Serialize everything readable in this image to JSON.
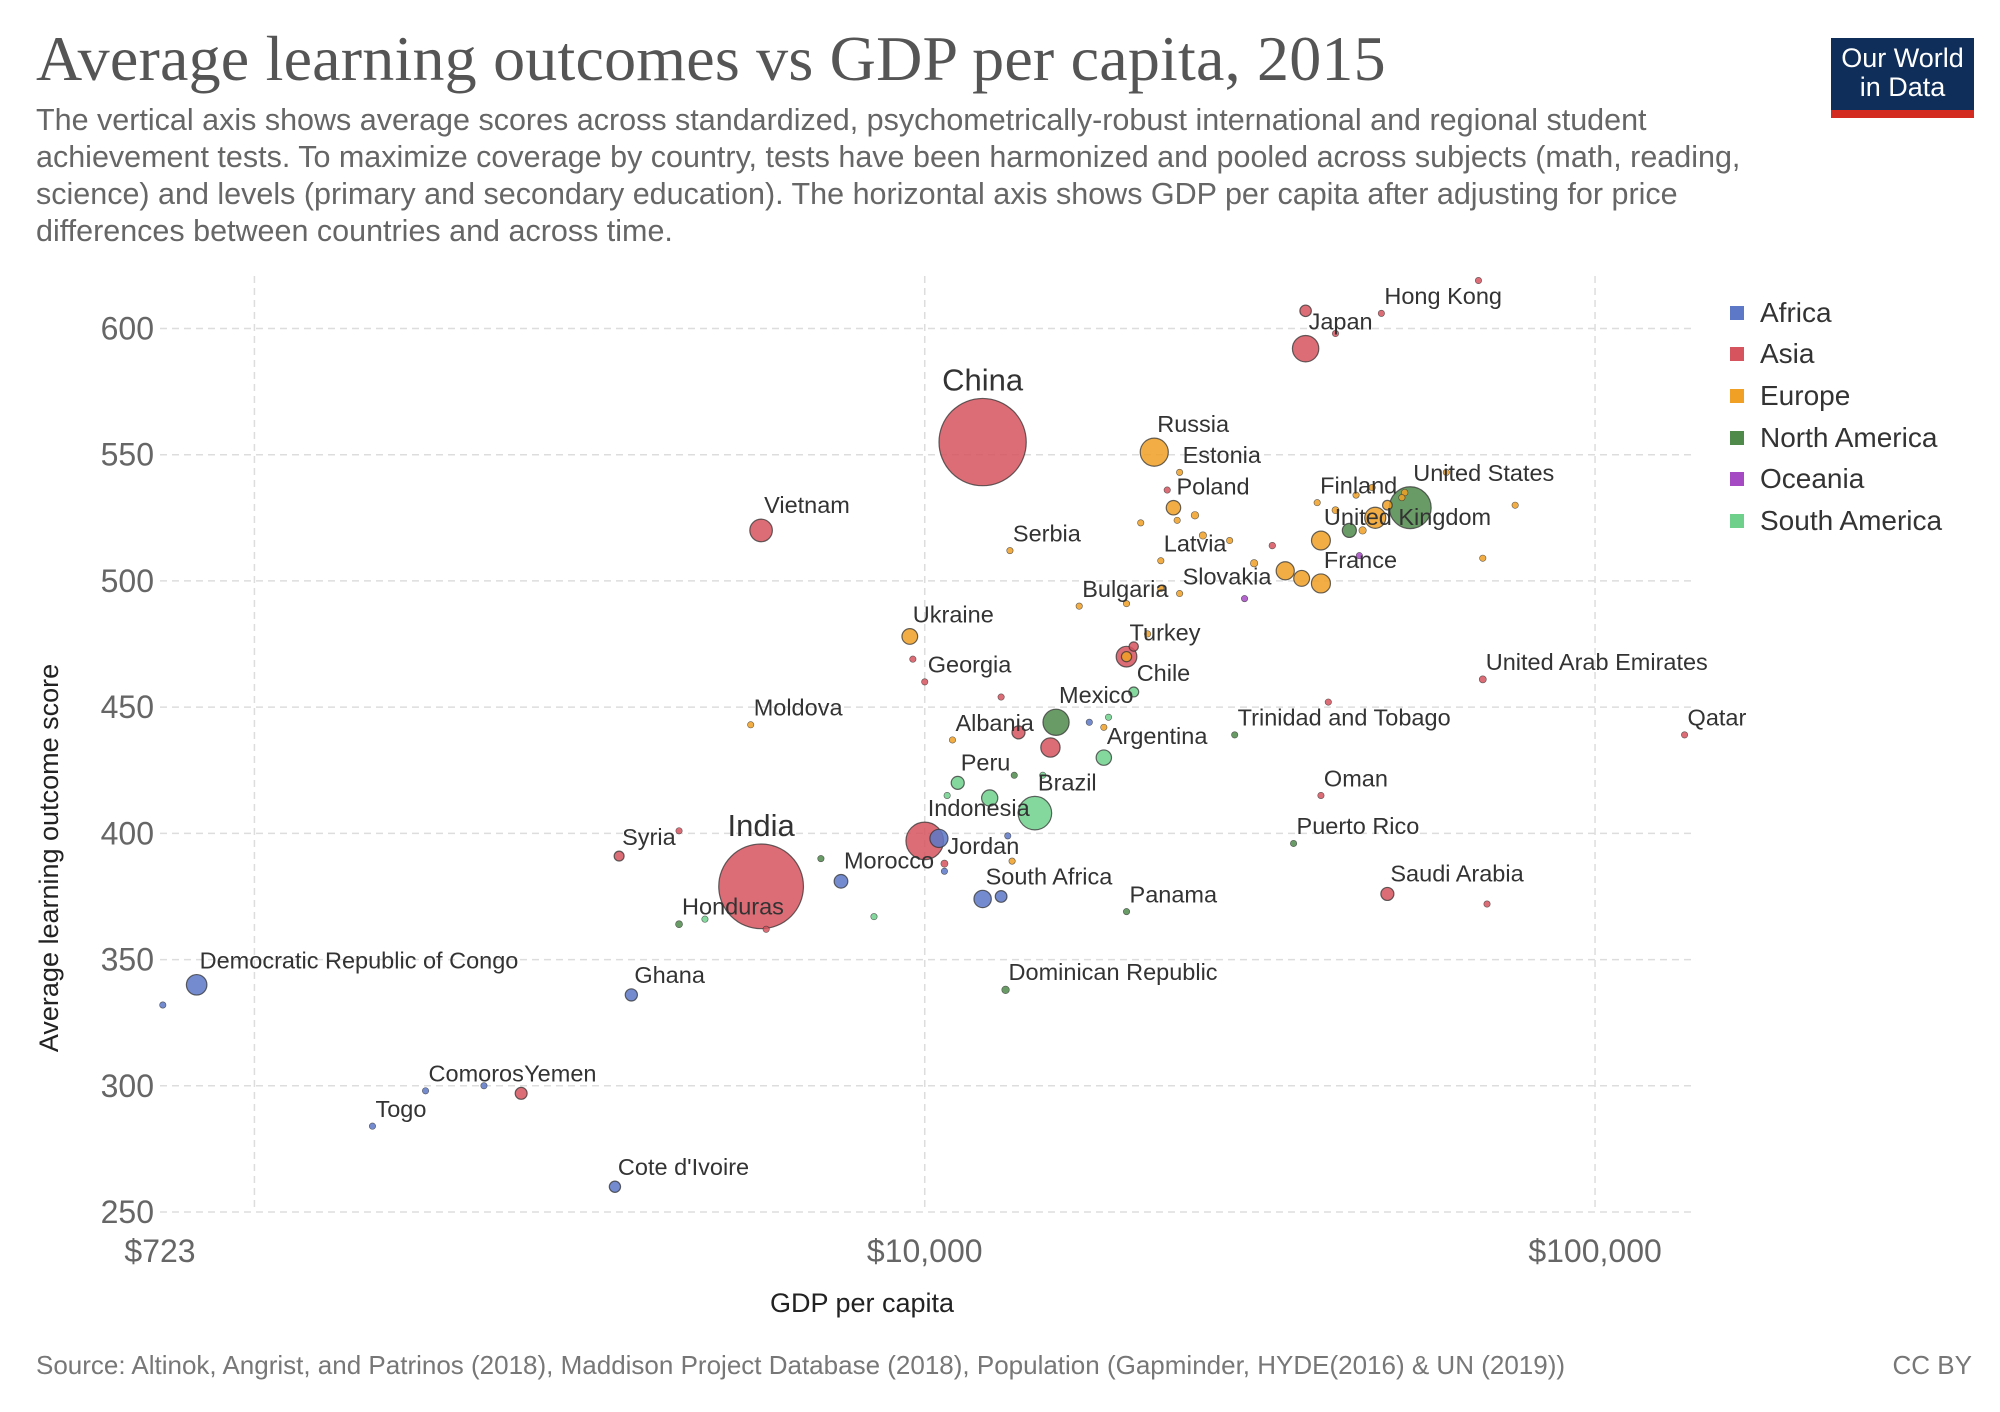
{
  "header": {
    "title": "Average learning outcomes vs GDP per capita, 2015",
    "subtitle": "The vertical axis shows average scores across standardized, psychometrically-robust international and regional student achievement tests. To maximize coverage by country, tests have been harmonized and pooled across subjects (math, reading, science) and levels (primary and secondary education). The horizontal axis shows GDP per capita after adjusting for price differences between countries and across time."
  },
  "logo": {
    "line1": "Our World",
    "line2": "in Data"
  },
  "footer": {
    "source": "Source: Altinok, Angrist, and Patrinos (2018), Maddison Project Database (2018), Population (Gapminder, HYDE(2016) & UN (2019))",
    "license": "CC BY"
  },
  "colors": {
    "Africa": "#5c78c7",
    "Asia": "#d6545e",
    "Europe": "#f0a024",
    "North America": "#4f8a4b",
    "Oceania": "#a64ac4",
    "South America": "#6fd08c"
  },
  "chart_data": {
    "type": "scatter",
    "xlabel": "GDP per capita",
    "ylabel": "Average learning outcome score",
    "x_scale": "log",
    "xlim": [
      723,
      140000
    ],
    "ylim": [
      250,
      620
    ],
    "x_ticks": [
      723,
      10000,
      100000
    ],
    "x_tick_labels": [
      "$723",
      "$10,000",
      "$100,000"
    ],
    "y_ticks": [
      250,
      300,
      350,
      400,
      450,
      500,
      550,
      600
    ],
    "grid": true,
    "legend_position": "right",
    "legend": [
      "Africa",
      "Asia",
      "Europe",
      "North America",
      "Oceania",
      "South America"
    ],
    "points": [
      {
        "label": "China",
        "region": "Asia",
        "gdp": 12200,
        "score": 555,
        "pop": 1390000000
      },
      {
        "label": "India",
        "region": "Asia",
        "gdp": 5700,
        "score": 379,
        "pop": 1310000000
      },
      {
        "label": "Indonesia",
        "region": "Asia",
        "gdp": 10000,
        "score": 397,
        "pop": 258000000
      },
      {
        "label": "Japan",
        "region": "Asia",
        "gdp": 37000,
        "score": 592,
        "pop": 127000000
      },
      {
        "label": "Hong Kong",
        "region": "Asia",
        "gdp": 48000,
        "score": 606,
        "pop": 7300000
      },
      {
        "label": "Vietnam",
        "region": "Asia",
        "gdp": 5700,
        "score": 520,
        "pop": 93000000
      },
      {
        "label": "Georgia",
        "region": "Asia",
        "gdp": 10000,
        "score": 460,
        "pop": 3700000
      },
      {
        "label": "Turkey",
        "region": "Asia",
        "gdp": 20000,
        "score": 470,
        "pop": 78000000
      },
      {
        "label": "Syria",
        "region": "Asia",
        "gdp": 3500,
        "score": 391,
        "pop": 18000000
      },
      {
        "label": "Jordan",
        "region": "Asia",
        "gdp": 10700,
        "score": 388,
        "pop": 9300000
      },
      {
        "label": "Yemen",
        "region": "Asia",
        "gdp": 2500,
        "score": 297,
        "pop": 26000000
      },
      {
        "label": "United Arab Emirates",
        "region": "Asia",
        "gdp": 68000,
        "score": 461,
        "pop": 9200000
      },
      {
        "label": "Qatar",
        "region": "Asia",
        "gdp": 136000,
        "score": 439,
        "pop": 2500000
      },
      {
        "label": "Oman",
        "region": "Asia",
        "gdp": 39000,
        "score": 415,
        "pop": 4300000
      },
      {
        "label": "Saudi Arabia",
        "region": "Asia",
        "gdp": 49000,
        "score": 376,
        "pop": 31000000
      },
      {
        "label": "",
        "region": "Asia",
        "gdp": 37000,
        "score": 607,
        "pop": 24000000
      },
      {
        "label": "",
        "region": "Asia",
        "gdp": 41000,
        "score": 598,
        "pop": 5500000
      },
      {
        "label": "",
        "region": "Asia",
        "gdp": 67000,
        "score": 619,
        "pop": 1200000
      },
      {
        "label": "",
        "region": "Asia",
        "gdp": 23000,
        "score": 536,
        "pop": 5000000
      },
      {
        "label": "",
        "region": "Asia",
        "gdp": 33000,
        "score": 514,
        "pop": 8000000
      },
      {
        "label": "",
        "region": "Asia",
        "gdp": 9600,
        "score": 469,
        "pop": 3000000
      },
      {
        "label": "",
        "region": "Asia",
        "gdp": 13000,
        "score": 454,
        "pop": 3500000
      },
      {
        "label": "",
        "region": "Asia",
        "gdp": 20500,
        "score": 474,
        "pop": 16000000
      },
      {
        "label": "",
        "region": "Asia",
        "gdp": 13800,
        "score": 440,
        "pop": 31000000
      },
      {
        "label": "",
        "region": "Asia",
        "gdp": 15400,
        "score": 434,
        "pop": 68000000
      },
      {
        "label": "",
        "region": "Asia",
        "gdp": 4300,
        "score": 401,
        "pop": 3000000
      },
      {
        "label": "",
        "region": "Asia",
        "gdp": 5800,
        "score": 362,
        "pop": 5000000
      },
      {
        "label": "",
        "region": "Asia",
        "gdp": 40000,
        "score": 452,
        "pop": 3000000
      },
      {
        "label": "",
        "region": "Asia",
        "gdp": 69000,
        "score": 372,
        "pop": 3000000
      },
      {
        "label": "Russia",
        "region": "Europe",
        "gdp": 22000,
        "score": 551,
        "pop": 144000000
      },
      {
        "label": "Estonia",
        "region": "Europe",
        "gdp": 24000,
        "score": 543,
        "pop": 1300000
      },
      {
        "label": "Poland",
        "region": "Europe",
        "gdp": 23500,
        "score": 529,
        "pop": 38000000
      },
      {
        "label": "Serbia",
        "region": "Europe",
        "gdp": 13400,
        "score": 512,
        "pop": 7100000
      },
      {
        "label": "Latvia",
        "region": "Europe",
        "gdp": 22500,
        "score": 508,
        "pop": 2000000
      },
      {
        "label": "Bulgaria",
        "region": "Europe",
        "gdp": 17000,
        "score": 490,
        "pop": 7200000
      },
      {
        "label": "Slovakia",
        "region": "Europe",
        "gdp": 24000,
        "score": 495,
        "pop": 5400000
      },
      {
        "label": "Ukraine",
        "region": "Europe",
        "gdp": 9500,
        "score": 478,
        "pop": 45000000
      },
      {
        "label": "Moldova",
        "region": "Europe",
        "gdp": 5500,
        "score": 443,
        "pop": 3500000
      },
      {
        "label": "Albania",
        "region": "Europe",
        "gdp": 11000,
        "score": 437,
        "pop": 2900000
      },
      {
        "label": "Finland",
        "region": "Europe",
        "gdp": 38500,
        "score": 531,
        "pop": 5500000
      },
      {
        "label": "United Kingdom",
        "region": "Europe",
        "gdp": 39000,
        "score": 516,
        "pop": 65000000
      },
      {
        "label": "France",
        "region": "Europe",
        "gdp": 39000,
        "score": 499,
        "pop": 66000000
      },
      {
        "label": "",
        "region": "Europe",
        "gdp": 47000,
        "score": 525,
        "pop": 81000000
      },
      {
        "label": "",
        "region": "Europe",
        "gdp": 34500,
        "score": 504,
        "pop": 60000000
      },
      {
        "label": "",
        "region": "Europe",
        "gdp": 36500,
        "score": 501,
        "pop": 46000000
      },
      {
        "label": "",
        "region": "Europe",
        "gdp": 49000,
        "score": 530,
        "pop": 17000000
      },
      {
        "label": "",
        "region": "Europe",
        "gdp": 45000,
        "score": 520,
        "pop": 10000000
      },
      {
        "label": "",
        "region": "Europe",
        "gdp": 41000,
        "score": 528,
        "pop": 9000000
      },
      {
        "label": "",
        "region": "Europe",
        "gdp": 44000,
        "score": 534,
        "pop": 5700000
      },
      {
        "label": "",
        "region": "Europe",
        "gdp": 46500,
        "score": 537,
        "pop": 5000000
      },
      {
        "label": "",
        "region": "Europe",
        "gdp": 51500,
        "score": 533,
        "pop": 4000000
      },
      {
        "label": "",
        "region": "Europe",
        "gdp": 52000,
        "score": 535,
        "pop": 8000000
      },
      {
        "label": "",
        "region": "Europe",
        "gdp": 60000,
        "score": 543,
        "pop": 4700000
      },
      {
        "label": "",
        "region": "Europe",
        "gdp": 76000,
        "score": 530,
        "pop": 5200000
      },
      {
        "label": "",
        "region": "Europe",
        "gdp": 68000,
        "score": 509,
        "pop": 600000
      },
      {
        "label": "",
        "region": "Europe",
        "gdp": 21000,
        "score": 523,
        "pop": 4000000
      },
      {
        "label": "",
        "region": "Europe",
        "gdp": 23800,
        "score": 524,
        "pop": 2100000
      },
      {
        "label": "",
        "region": "Europe",
        "gdp": 25300,
        "score": 526,
        "pop": 10500000
      },
      {
        "label": "",
        "region": "Europe",
        "gdp": 26000,
        "score": 518,
        "pop": 9800000
      },
      {
        "label": "",
        "region": "Europe",
        "gdp": 28500,
        "score": 516,
        "pop": 2900000
      },
      {
        "label": "",
        "region": "Europe",
        "gdp": 31000,
        "score": 507,
        "pop": 10000000
      },
      {
        "label": "",
        "region": "Europe",
        "gdp": 22500,
        "score": 497,
        "pop": 4200000
      },
      {
        "label": "",
        "region": "Europe",
        "gdp": 20000,
        "score": 491,
        "pop": 2000000
      },
      {
        "label": "",
        "region": "Europe",
        "gdp": 20000,
        "score": 470,
        "pop": 19000000
      },
      {
        "label": "",
        "region": "Europe",
        "gdp": 18500,
        "score": 442,
        "pop": 2000000
      },
      {
        "label": "",
        "region": "Europe",
        "gdp": 13500,
        "score": 389,
        "pop": 2000000
      },
      {
        "label": "",
        "region": "Europe",
        "gdp": 21500,
        "score": 479,
        "pop": 2000000
      },
      {
        "label": "United States",
        "region": "North America",
        "gdp": 53000,
        "score": 529,
        "pop": 320000000
      },
      {
        "label": "Mexico",
        "region": "North America",
        "gdp": 15700,
        "score": 444,
        "pop": 125000000
      },
      {
        "label": "Trinidad and Tobago",
        "region": "North America",
        "gdp": 29000,
        "score": 439,
        "pop": 1400000
      },
      {
        "label": "Puerto Rico",
        "region": "North America",
        "gdp": 35500,
        "score": 396,
        "pop": 3500000
      },
      {
        "label": "Panama",
        "region": "North America",
        "gdp": 20000,
        "score": 369,
        "pop": 4000000
      },
      {
        "label": "Dominican Republic",
        "region": "North America",
        "gdp": 13200,
        "score": 338,
        "pop": 10500000
      },
      {
        "label": "Honduras",
        "region": "North America",
        "gdp": 4300,
        "score": 364,
        "pop": 9000000
      },
      {
        "label": "",
        "region": "North America",
        "gdp": 43000,
        "score": 520,
        "pop": 36000000
      },
      {
        "label": "",
        "region": "North America",
        "gdp": 7000,
        "score": 390,
        "pop": 6000000
      },
      {
        "label": "",
        "region": "North America",
        "gdp": 13600,
        "score": 423,
        "pop": 5000000
      },
      {
        "label": "Peru",
        "region": "South America",
        "gdp": 11200,
        "score": 420,
        "pop": 31000000
      },
      {
        "label": "Chile",
        "region": "South America",
        "gdp": 20500,
        "score": 456,
        "pop": 18000000
      },
      {
        "label": "Argentina",
        "region": "South America",
        "gdp": 18500,
        "score": 430,
        "pop": 43000000
      },
      {
        "label": "Brazil",
        "region": "South America",
        "gdp": 14600,
        "score": 408,
        "pop": 205000000
      },
      {
        "label": "",
        "region": "South America",
        "gdp": 12500,
        "score": 414,
        "pop": 48000000
      },
      {
        "label": "",
        "region": "South America",
        "gdp": 15000,
        "score": 423,
        "pop": 6000000
      },
      {
        "label": "",
        "region": "South America",
        "gdp": 10800,
        "score": 415,
        "pop": 3000000
      },
      {
        "label": "",
        "region": "South America",
        "gdp": 8400,
        "score": 367,
        "pop": 3000000
      },
      {
        "label": "",
        "region": "South America",
        "gdp": 18800,
        "score": 446,
        "pop": 1500000
      },
      {
        "label": "",
        "region": "South America",
        "gdp": 4700,
        "score": 366,
        "pop": 2000000
      },
      {
        "label": "Democratic Republic of Congo",
        "region": "Africa",
        "gdp": 820,
        "score": 340,
        "pop": 77000000
      },
      {
        "label": "Ghana",
        "region": "Africa",
        "gdp": 3650,
        "score": 336,
        "pop": 27000000
      },
      {
        "label": "Comoros",
        "region": "Africa",
        "gdp": 1800,
        "score": 298,
        "pop": 800000
      },
      {
        "label": "Togo",
        "region": "Africa",
        "gdp": 1500,
        "score": 284,
        "pop": 7300000
      },
      {
        "label": "Cote d'Ivoire",
        "region": "Africa",
        "gdp": 3450,
        "score": 260,
        "pop": 23000000
      },
      {
        "label": "Morocco",
        "region": "Africa",
        "gdp": 7500,
        "score": 381,
        "pop": 34000000
      },
      {
        "label": "South Africa",
        "region": "Africa",
        "gdp": 12200,
        "score": 374,
        "pop": 55000000
      },
      {
        "label": "",
        "region": "Africa",
        "gdp": 10500,
        "score": 398,
        "pop": 60000000
      },
      {
        "label": "",
        "region": "Africa",
        "gdp": 13000,
        "score": 375,
        "pop": 25000000
      },
      {
        "label": "",
        "region": "Africa",
        "gdp": 10700,
        "score": 385,
        "pop": 3000000
      },
      {
        "label": "",
        "region": "Africa",
        "gdp": 13300,
        "score": 399,
        "pop": 1500000
      },
      {
        "label": "",
        "region": "Africa",
        "gdp": 17600,
        "score": 444,
        "pop": 1500000
      },
      {
        "label": "",
        "region": "Africa",
        "gdp": 730,
        "score": 332,
        "pop": 3000000
      },
      {
        "label": "",
        "region": "Africa",
        "gdp": 2200,
        "score": 300,
        "pop": 3000000
      },
      {
        "label": "",
        "region": "Oceania",
        "gdp": 30000,
        "score": 493,
        "pop": 3000000
      },
      {
        "label": "",
        "region": "Oceania",
        "gdp": 44500,
        "score": 510,
        "pop": 4000000
      }
    ]
  }
}
